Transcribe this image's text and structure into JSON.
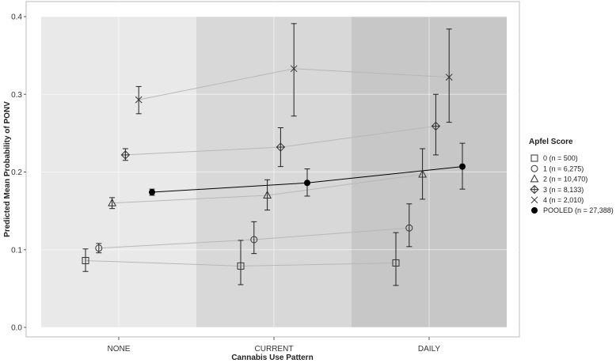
{
  "chart_data": {
    "type": "scatter",
    "xlabel": "Cannabis Use Pattern",
    "ylabel": "Predicted Mean Probability of PONV",
    "categories": [
      "NONE",
      "CURRENT",
      "DAILY"
    ],
    "ylim": [
      0,
      0.4
    ],
    "yticks": [
      "0.0",
      "0.1",
      "0.2",
      "0.3",
      "0.4"
    ],
    "grid": true,
    "legend_position": "right",
    "legend_title": "Apfel Score",
    "background_bands": [
      "#e9e9e9",
      "#d8d8d8",
      "#c7c7c7"
    ],
    "series": [
      {
        "name": "0 (n = 500)",
        "marker": "square",
        "connector": "light",
        "values": [
          0.086,
          0.079,
          0.083
        ],
        "lower": [
          0.072,
          0.055,
          0.054
        ],
        "upper": [
          0.101,
          0.112,
          0.122
        ]
      },
      {
        "name": "1 (n = 6,275)",
        "marker": "circle",
        "connector": "light",
        "values": [
          0.102,
          0.113,
          0.128
        ],
        "lower": [
          0.096,
          0.095,
          0.104
        ],
        "upper": [
          0.108,
          0.136,
          0.159
        ]
      },
      {
        "name": "2 (n = 10,470)",
        "marker": "triangle",
        "connector": "light",
        "values": [
          0.16,
          0.17,
          0.197
        ],
        "lower": [
          0.153,
          0.151,
          0.165
        ],
        "upper": [
          0.167,
          0.19,
          0.23
        ]
      },
      {
        "name": "3 (n = 8,133)",
        "marker": "diamond-plus",
        "connector": "light",
        "values": [
          0.222,
          0.232,
          0.259
        ],
        "lower": [
          0.215,
          0.207,
          0.222
        ],
        "upper": [
          0.23,
          0.257,
          0.3
        ]
      },
      {
        "name": "4 (n = 2,010)",
        "marker": "x",
        "connector": "light",
        "values": [
          0.293,
          0.333,
          0.322
        ],
        "lower": [
          0.275,
          0.272,
          0.264
        ],
        "upper": [
          0.31,
          0.391,
          0.384
        ]
      },
      {
        "name": "POOLED (n = 27,388)",
        "marker": "filled-circle",
        "connector": "dark",
        "values": [
          0.174,
          0.186,
          0.207
        ],
        "lower": [
          0.17,
          0.169,
          0.178
        ],
        "upper": [
          0.178,
          0.204,
          0.237
        ]
      }
    ]
  }
}
